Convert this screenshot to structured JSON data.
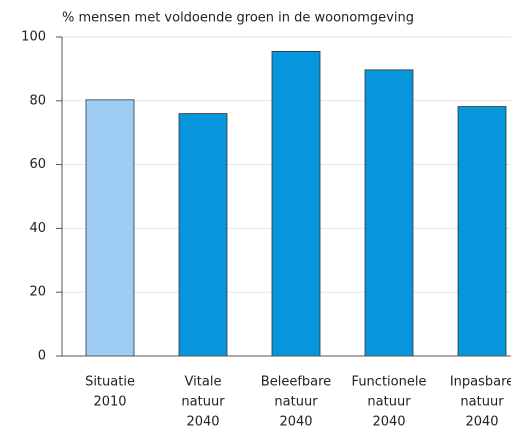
{
  "chart_data": {
    "type": "bar",
    "title": "% mensen met voldoende groen in de woonomgeving",
    "categories": [
      [
        "Situatie",
        "2010"
      ],
      [
        "Vitale",
        "natuur",
        "2040"
      ],
      [
        "Beleefbare",
        "natuur",
        "2040"
      ],
      [
        "Functionele",
        "natuur",
        "2040"
      ],
      [
        "Inpasbare",
        "natuur",
        "2040"
      ]
    ],
    "values": [
      80.3,
      76,
      95.5,
      89.7,
      78.2
    ],
    "colors": [
      "#9dcdf2",
      "#0795dc",
      "#0795dc",
      "#0795dc",
      "#0795dc"
    ],
    "ylim": [
      0,
      100
    ],
    "yticks": [
      0,
      20,
      40,
      60,
      80,
      100
    ],
    "grid": true
  }
}
